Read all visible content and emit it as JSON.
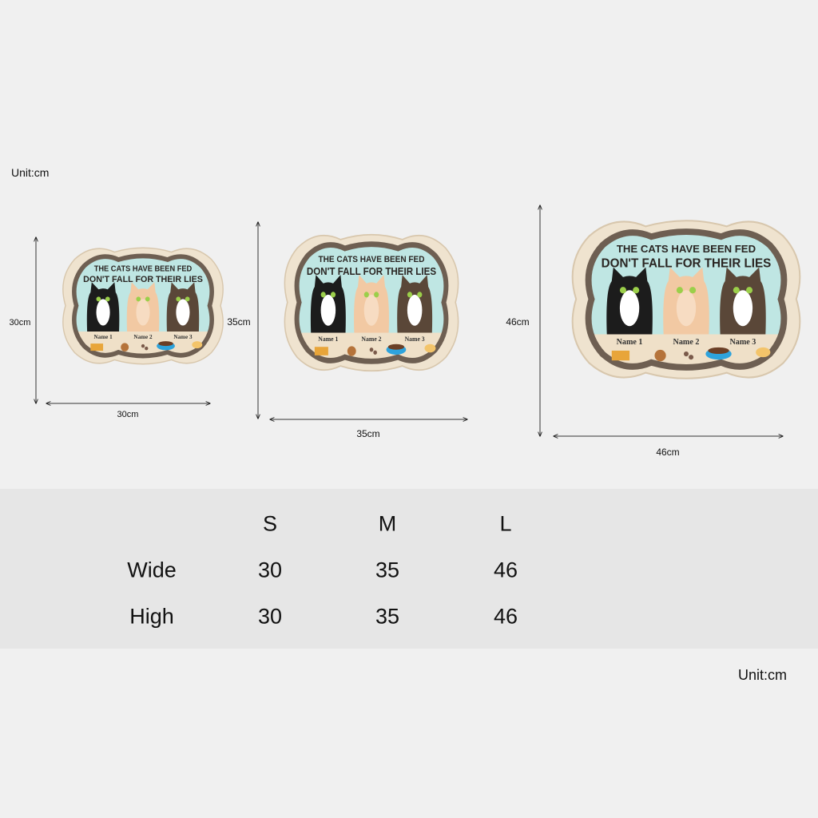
{
  "unit_top": "Unit:cm",
  "unit_bottom": "Unit:cm",
  "sign": {
    "line1": "THE CATS HAVE BEEN FED",
    "line2": "DON'T FALL FOR THEIR LIES",
    "names": [
      "Name 1",
      "Name 2",
      "Name 3"
    ]
  },
  "dimensions": {
    "small": {
      "height": "30cm",
      "width": "30cm"
    },
    "medium": {
      "height": "35cm",
      "width": "35cm"
    },
    "large": {
      "height": "46cm",
      "width": "46cm"
    }
  },
  "table": {
    "headers": [
      "S",
      "M",
      "L"
    ],
    "rows": [
      {
        "label": "Wide",
        "values": [
          "30",
          "35",
          "46"
        ]
      },
      {
        "label": "High",
        "values": [
          "30",
          "35",
          "46"
        ]
      }
    ]
  },
  "colors": {
    "sky": "#bfe6e3",
    "frame": "#6e5f52",
    "border": "#efe3cf",
    "floor": "#efe0c8"
  }
}
